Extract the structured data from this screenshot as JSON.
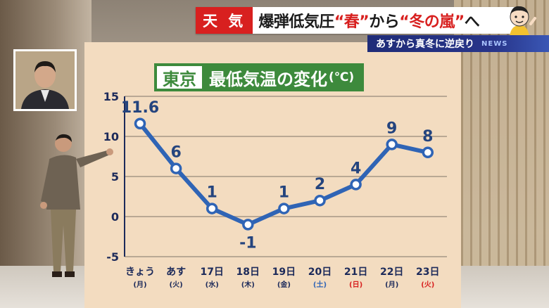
{
  "banner": {
    "badge": "天 気",
    "headline_parts": [
      "爆弾低気圧",
      "“春”",
      "から",
      "“冬の嵐”",
      "へ"
    ],
    "sub": "あすから真冬に逆戻り",
    "news_mark": "NEWS"
  },
  "chart_title": {
    "city": "東京",
    "main": "最低気温の変化",
    "unit": "(℃)"
  },
  "colors": {
    "line": "#2f64b5",
    "accent_red": "#d8201f",
    "title_green": "#3d8a3c",
    "board": "#f3dcc0",
    "weekend_sat": "#2f64b5",
    "weekend_sun": "#d8201f"
  },
  "chart_data": {
    "type": "line",
    "title": "東京 最低気温の変化(℃)",
    "categories": [
      "きょう",
      "あす",
      "17日",
      "18日",
      "19日",
      "20日",
      "21日",
      "22日",
      "23日"
    ],
    "weekdays": [
      "(月)",
      "(火)",
      "(水)",
      "(木)",
      "(金)",
      "(土)",
      "(日)",
      "(月)",
      "(火)"
    ],
    "weekday_colors": [
      "#1c2a5a",
      "#1c2a5a",
      "#1c2a5a",
      "#1c2a5a",
      "#1c2a5a",
      "#2f64b5",
      "#d8201f",
      "#1c2a5a",
      "#d8201f"
    ],
    "series": [
      {
        "values": [
          11.6,
          6,
          1,
          -1,
          1,
          2,
          4,
          9,
          8
        ],
        "labels": [
          "11.6",
          "6",
          "1",
          "-1",
          "1",
          "2",
          "4",
          "9",
          "8"
        ]
      }
    ],
    "ylim": [
      -5,
      15
    ],
    "yticks": [
      -5,
      0,
      5,
      10,
      15
    ],
    "grid": true
  }
}
